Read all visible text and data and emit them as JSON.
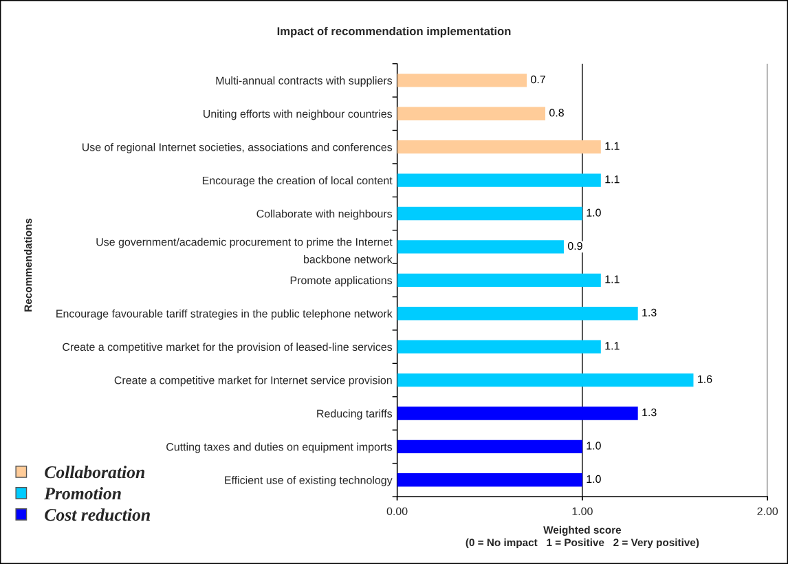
{
  "chart_data": {
    "type": "bar",
    "orientation": "horizontal",
    "title": "Impact of recommendation implementation",
    "xlabel": "Weighted score\n(0 = No impact   1 = Positive   2 = Very positive)",
    "ylabel": "Recommendations",
    "categories": [
      "Multi-annual contracts with suppliers",
      "Uniting efforts with neighbour countries",
      "Use of regional Internet societies, associations and conferences",
      "Encourage the creation of local content",
      "Collaborate with neighbours",
      "Use government/academic procurement to prime the Internet\nbackbone network",
      "Promote applications",
      "Encourage favourable tariff strategies in the public telephone network",
      "Create a competitive market for the provision of leased-line services",
      "Create a competitive market for Internet service provision",
      "Reducing tariffs",
      "Cutting taxes and duties on equipment imports",
      "Efficient use of existing technology"
    ],
    "series": [
      {
        "name": "Collaboration",
        "color": "#ffcc99",
        "values": [
          0.7,
          0.8,
          1.1,
          null,
          null,
          null,
          null,
          null,
          null,
          null,
          null,
          null,
          null
        ],
        "value_labels": [
          "0.7",
          "0.8",
          "1.1",
          null,
          null,
          null,
          null,
          null,
          null,
          null,
          null,
          null,
          null
        ]
      },
      {
        "name": "Promotion",
        "color": "#00ccff",
        "values": [
          null,
          null,
          null,
          1.1,
          1.0,
          0.9,
          1.1,
          1.3,
          1.1,
          1.6,
          null,
          null,
          null
        ],
        "value_labels": [
          null,
          null,
          null,
          "1.1",
          "1.0",
          "0.9",
          "1.1",
          "1.3",
          "1.1",
          "1.6",
          null,
          null,
          null
        ]
      },
      {
        "name": "Cost reduction",
        "color": "#0000ff",
        "values": [
          null,
          null,
          null,
          null,
          null,
          null,
          null,
          null,
          null,
          null,
          1.3,
          1.0,
          1.0
        ],
        "value_labels": [
          null,
          null,
          null,
          null,
          null,
          null,
          null,
          null,
          null,
          null,
          "1.3",
          "1.0",
          "1.0"
        ]
      }
    ],
    "xlim": [
      0,
      2
    ],
    "xticks": [
      {
        "value": 0,
        "label": "0.00"
      },
      {
        "value": 1,
        "label": "1.00"
      },
      {
        "value": 2,
        "label": "2.00"
      }
    ],
    "grid": "x",
    "legend": "bottom left"
  }
}
